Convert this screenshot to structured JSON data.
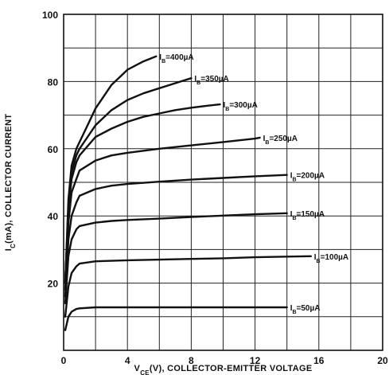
{
  "chart_data": {
    "type": "line",
    "xlabel": "V",
    "xlabel_sub": "CE",
    "xlabel_rest": "(V), COLLECTOR-EMITTER VOLTAGE",
    "ylabel": "I",
    "ylabel_sub": "C",
    "ylabel_rest": "(mA), COLLECTOR CURRENT",
    "xlim": [
      0,
      20
    ],
    "ylim": [
      0,
      100
    ],
    "x_ticks": [
      0,
      4,
      8,
      12,
      16,
      20
    ],
    "y_ticks": [
      20,
      40,
      60,
      80,
      100
    ],
    "x_tick_labels": [
      "0",
      "4",
      "8",
      "12",
      "16",
      "20"
    ],
    "y_tick_labels": [
      "20",
      "40",
      "60",
      "80",
      "100"
    ],
    "grid": true,
    "series": [
      {
        "name": "I B=400µA",
        "label_text": "=400µA",
        "x": [
          0.1,
          0.3,
          0.5,
          0.8,
          1.0,
          1.5,
          2.0,
          3.0,
          4.0,
          5.0,
          5.8
        ],
        "y": [
          20,
          45,
          55,
          60,
          62,
          67,
          72,
          79,
          83.5,
          86,
          87.5
        ]
      },
      {
        "name": "I B=350µA",
        "label_text": "=350µA",
        "x": [
          0.1,
          0.3,
          0.5,
          0.8,
          1.0,
          2.0,
          3.0,
          4.0,
          5.0,
          6.0,
          7.0,
          8.0
        ],
        "y": [
          20,
          43,
          53,
          58,
          60,
          67,
          71.5,
          74.5,
          76.5,
          78,
          79.5,
          81
        ]
      },
      {
        "name": "I B=300µA",
        "label_text": "=300µA",
        "x": [
          0.1,
          0.3,
          0.5,
          0.8,
          1.0,
          2.0,
          3.0,
          4.0,
          5.0,
          6.0,
          7.0,
          8.0,
          9.0,
          9.8
        ],
        "y": [
          20,
          42,
          51,
          56,
          58,
          63.5,
          66,
          68,
          69.5,
          70.5,
          71.5,
          72.2,
          72.8,
          73.2
        ]
      },
      {
        "name": "I B=250µA",
        "label_text": "=250µA",
        "x": [
          0.1,
          0.3,
          0.5,
          0.8,
          1.0,
          2.0,
          3.0,
          4.0,
          6.0,
          8.0,
          10.0,
          12.0,
          12.3
        ],
        "y": [
          18,
          38,
          47,
          51,
          53.5,
          56.5,
          58,
          58.8,
          60,
          61,
          62,
          63,
          63.3
        ]
      },
      {
        "name": "I B=200µA",
        "label_text": "=200µA",
        "x": [
          0.1,
          0.3,
          0.5,
          0.8,
          1.0,
          2.0,
          3.0,
          4.0,
          6.0,
          8.0,
          10.0,
          12.0,
          14.0
        ],
        "y": [
          16,
          33,
          40,
          44,
          46,
          48,
          49,
          49.5,
          50.2,
          50.8,
          51.3,
          51.8,
          52.2
        ]
      },
      {
        "name": "I B=150µA",
        "label_text": "=150µA",
        "x": [
          0.1,
          0.3,
          0.5,
          0.8,
          1.0,
          2.0,
          3.0,
          4.0,
          6.0,
          8.0,
          10.0,
          12.0,
          14.0
        ],
        "y": [
          14,
          28,
          33,
          36,
          37,
          38,
          38.5,
          38.8,
          39.2,
          39.7,
          40.1,
          40.5,
          40.8
        ]
      },
      {
        "name": "I B=100µA",
        "label_text": "=100µA",
        "x": [
          0.1,
          0.3,
          0.5,
          0.8,
          1.0,
          2.0,
          4.0,
          6.0,
          8.0,
          10.0,
          12.0,
          14.0,
          15.5
        ],
        "y": [
          10,
          19,
          23,
          25,
          25.8,
          26.5,
          26.8,
          27,
          27.2,
          27.4,
          27.7,
          27.9,
          28
        ]
      },
      {
        "name": "I B=50µA",
        "label_text": "=50µA",
        "x": [
          0.1,
          0.3,
          0.5,
          0.8,
          1.0,
          2.0,
          4.0,
          8.0,
          12.0,
          14.0
        ],
        "y": [
          6,
          10,
          11.5,
          12.3,
          12.5,
          12.8,
          12.8,
          12.8,
          12.8,
          12.8
        ]
      }
    ]
  }
}
